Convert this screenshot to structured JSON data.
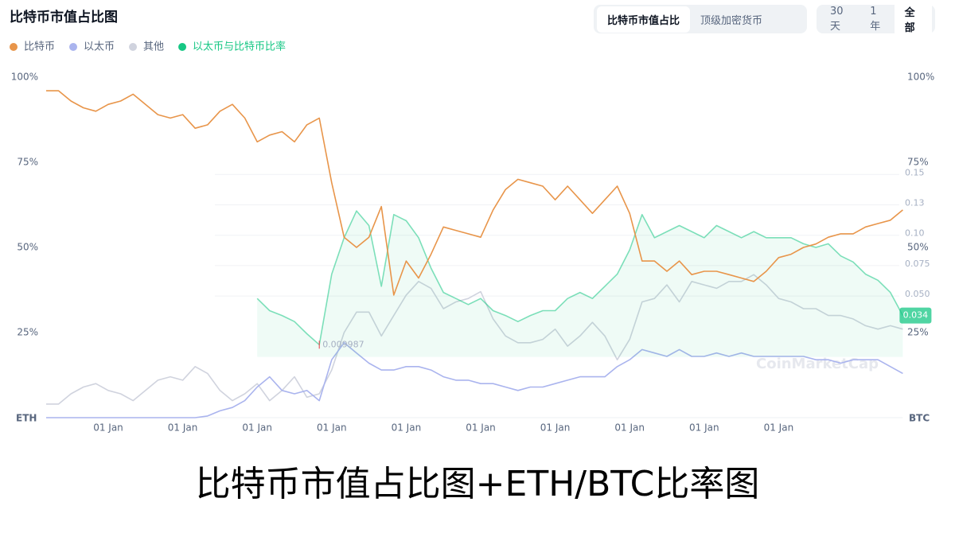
{
  "chart_data": {
    "type": "line",
    "title": "比特币市值占比图",
    "metric_tabs": [
      "比特币市值占比",
      "顶级加密货币"
    ],
    "metric_active": 0,
    "range_tabs": [
      "30天",
      "1年",
      "全部"
    ],
    "range_active": 2,
    "categories": [
      null,
      null,
      null,
      null,
      null,
      "01 Jan",
      null,
      null,
      null,
      null,
      null,
      "01 Jan",
      null,
      null,
      null,
      null,
      null,
      "01 Jan",
      null,
      null,
      null,
      null,
      null,
      "01 Jan",
      null,
      null,
      null,
      null,
      null,
      "01 Jan",
      null,
      null,
      null,
      null,
      null,
      "01 Jan",
      null,
      null,
      null,
      null,
      null,
      "01 Jan",
      null,
      null,
      null,
      null,
      null,
      "01 Jan",
      null,
      null,
      null,
      null,
      null,
      "01 Jan",
      null,
      null,
      null,
      null,
      null,
      "01 Jan",
      null,
      null,
      null,
      null,
      null,
      null,
      null,
      null,
      null,
      null
    ],
    "series": [
      {
        "name": "比特币",
        "color": "#e8954a",
        "values": [
          96,
          96,
          93,
          91,
          90,
          92,
          93,
          95,
          92,
          89,
          88,
          89,
          85,
          86,
          90,
          92,
          88,
          81,
          83,
          84,
          81,
          86,
          88,
          69,
          53,
          50,
          53,
          62,
          36,
          46,
          41,
          48,
          56,
          55,
          54,
          53,
          61,
          67,
          70,
          69,
          68,
          64,
          68,
          64,
          60,
          64,
          68,
          60,
          46,
          46,
          43,
          46,
          42,
          43,
          43,
          42,
          41,
          40,
          43,
          47,
          48,
          50,
          51,
          53,
          54,
          54,
          56,
          57,
          58,
          61
        ]
      },
      {
        "name": "以太币",
        "color": "#aab4ee",
        "values": [
          0,
          0,
          0,
          0,
          0,
          0,
          0,
          0,
          0,
          0,
          0,
          0,
          0,
          0.5,
          2,
          3,
          5,
          9,
          12,
          8,
          7,
          8,
          5,
          17,
          22,
          19,
          16,
          14,
          14,
          15,
          15,
          14,
          12,
          11,
          11,
          10,
          10,
          9,
          8,
          9,
          9,
          10,
          11,
          12,
          12,
          12,
          15,
          17,
          20,
          19,
          18,
          20,
          18,
          18,
          19,
          18,
          19,
          18,
          18,
          18,
          18,
          18,
          17,
          17,
          16,
          17,
          17,
          17,
          15,
          13
        ]
      },
      {
        "name": "其他",
        "color": "#d0d3de",
        "values": [
          4,
          4,
          7,
          9,
          10,
          8,
          7,
          5,
          8,
          11,
          12,
          11,
          15,
          13,
          8,
          5,
          7,
          10,
          5,
          8,
          12,
          6,
          7,
          14,
          25,
          31,
          31,
          24,
          30,
          36,
          40,
          38,
          32,
          34,
          35,
          37,
          29,
          24,
          22,
          22,
          23,
          26,
          21,
          24,
          28,
          24,
          17,
          23,
          34,
          35,
          39,
          34,
          40,
          39,
          38,
          40,
          40,
          42,
          39,
          35,
          34,
          32,
          32,
          30,
          30,
          29,
          27,
          26,
          27,
          26
        ]
      },
      {
        "name": "以太币与比特币比率",
        "color": "#16c784",
        "axis": "y2",
        "values": [
          null,
          null,
          null,
          null,
          null,
          null,
          null,
          null,
          null,
          null,
          null,
          null,
          null,
          null,
          null,
          null,
          null,
          0.048,
          0.038,
          0.034,
          0.029,
          0.019,
          0.009987,
          0.068,
          0.098,
          0.12,
          0.108,
          0.058,
          0.117,
          0.112,
          0.098,
          0.073,
          0.053,
          0.048,
          0.043,
          0.048,
          0.038,
          0.034,
          0.029,
          0.034,
          0.038,
          0.038,
          0.048,
          0.053,
          0.048,
          0.058,
          0.068,
          0.088,
          0.117,
          0.098,
          0.103,
          0.108,
          0.103,
          0.098,
          0.108,
          0.103,
          0.098,
          0.103,
          0.098,
          0.098,
          0.098,
          0.093,
          0.09,
          0.093,
          0.083,
          0.078,
          0.068,
          0.063,
          0.053,
          0.034
        ],
        "value_labels": [
          null,
          null,
          null,
          null,
          null,
          null,
          null,
          null,
          null,
          null,
          null,
          null,
          null,
          null,
          null,
          null,
          null,
          null,
          null,
          null,
          null,
          null,
          "0.009987",
          null,
          null,
          null,
          null,
          null,
          null,
          null,
          null,
          null,
          null,
          null,
          null,
          null,
          null,
          null,
          null,
          null,
          null,
          null,
          null,
          null,
          null,
          null,
          null,
          null,
          null,
          null,
          null,
          null,
          null,
          null,
          null,
          null,
          null,
          null,
          null,
          null,
          null,
          null,
          null,
          null,
          null,
          null,
          null,
          null,
          null,
          "0.034"
        ]
      }
    ],
    "ylim": [
      0,
      100
    ],
    "yticks": [
      {
        "value": 25,
        "label": "25%"
      },
      {
        "value": 50,
        "label": "50%"
      },
      {
        "value": 75,
        "label": "75%"
      },
      {
        "value": 100,
        "label": "100%"
      }
    ],
    "y2lim": [
      -0.05,
      0.23
    ],
    "y2ticks": [
      {
        "value": 0.05,
        "label": "0.050"
      },
      0.075,
      {
        "value": 0.1,
        "label": "0.10"
      },
      {
        "value": 0.125,
        "label": "0.13"
      },
      0.15
    ],
    "left_axis_label": "ETH",
    "right_axis_label": "BTC",
    "grid": true,
    "watermark": "CoinMarketCap",
    "caption": "比特币市值占比图+ETH/BTC比率图"
  }
}
